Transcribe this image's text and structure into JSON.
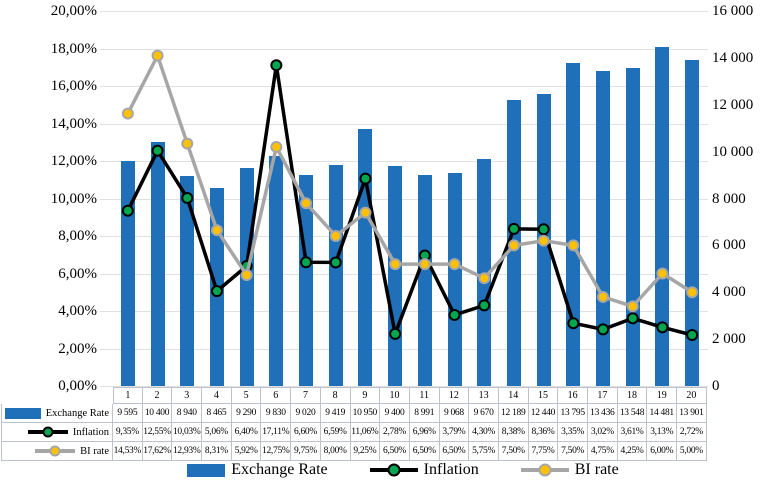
{
  "colors": {
    "bar_blue": "#1F70B8",
    "inflation_line": "#000000",
    "inflation_marker": "#00A650",
    "bi_line": "#A6A6A6",
    "bi_marker": "#FFC000",
    "gridline": "#DEE0E3",
    "table_border": "#BDC2CC",
    "background": "#FFFFFF"
  },
  "chart_data": {
    "type": "combo (bar + line)",
    "grid": true,
    "legend_position": "bottom",
    "has_data_table": true,
    "categories": [
      "1",
      "2",
      "3",
      "4",
      "5",
      "6",
      "7",
      "8",
      "9",
      "10",
      "11",
      "12",
      "13",
      "14",
      "15",
      "16",
      "17",
      "18",
      "19",
      "20"
    ],
    "left_axis": {
      "min": 0,
      "max": 20,
      "step": 2,
      "tick_labels": [
        "20,00%",
        "18,00%",
        "16,00%",
        "14,00%",
        "12,00%",
        "10,00%",
        "8,00%",
        "6,00%",
        "4,00%",
        "2,00%",
        "0,00%"
      ]
    },
    "right_axis": {
      "min": 0,
      "max": 16000,
      "step": 2000,
      "tick_labels": [
        "16 000",
        "14 000",
        "12 000",
        "10 000",
        "8 000",
        "6 000",
        "4 000",
        "2 000",
        "0"
      ]
    },
    "series": [
      {
        "name": "Exchange Rate",
        "chart_type": "bar",
        "axis": "right",
        "color": "#1F70B8",
        "values": [
          9595,
          10400,
          8940,
          8465,
          9290,
          9830,
          9020,
          9419,
          10950,
          9400,
          8991,
          9068,
          9670,
          12189,
          12440,
          13795,
          13436,
          13548,
          14481,
          13901
        ],
        "value_labels": [
          "9 595",
          "10 400",
          "8 940",
          "8 465",
          "9 290",
          "9 830",
          "9 020",
          "9 419",
          "10 950",
          "9 400",
          "8 991",
          "9 068",
          "9 670",
          "12 189",
          "12 440",
          "13 795",
          "13 436",
          "13 548",
          "14 481",
          "13 901"
        ]
      },
      {
        "name": "Inflation",
        "chart_type": "line",
        "axis": "left",
        "line_color": "#000000",
        "marker_fill": "#00A650",
        "marker_stroke": "#000000",
        "values": [
          9.35,
          12.55,
          10.03,
          5.06,
          6.4,
          17.11,
          6.6,
          6.59,
          11.06,
          2.78,
          6.96,
          3.79,
          4.3,
          8.38,
          8.36,
          3.35,
          3.02,
          3.61,
          3.13,
          2.72
        ],
        "value_labels": [
          "9,35%",
          "12,55%",
          "10,03%",
          "5,06%",
          "6,40%",
          "17,11%",
          "6,60%",
          "6,59%",
          "11,06%",
          "2,78%",
          "6,96%",
          "3,79%",
          "4,30%",
          "8,38%",
          "8,36%",
          "3,35%",
          "3,02%",
          "3,61%",
          "3,13%",
          "2,72%"
        ]
      },
      {
        "name": "BI rate",
        "chart_type": "line",
        "axis": "left",
        "line_color": "#A6A6A6",
        "marker_fill": "#FFC000",
        "marker_stroke": "#A6A6A6",
        "values": [
          14.53,
          17.62,
          12.93,
          8.31,
          5.92,
          12.75,
          9.75,
          8.0,
          9.25,
          6.5,
          6.5,
          6.5,
          5.75,
          7.5,
          7.75,
          7.5,
          4.75,
          4.25,
          6.0,
          5.0
        ],
        "value_labels": [
          "14,53%",
          "17,62%",
          "12,93%",
          "8,31%",
          "5,92%",
          "12,75%",
          "9,75%",
          "8,00%",
          "9,25%",
          "6,50%",
          "6,50%",
          "6,50%",
          "5,75%",
          "7,50%",
          "7,75%",
          "7,50%",
          "4,75%",
          "4,25%",
          "6,00%",
          "5,00%"
        ]
      }
    ]
  },
  "legend": {
    "items": [
      "Exchange Rate",
      "Inflation",
      "BI rate"
    ]
  }
}
